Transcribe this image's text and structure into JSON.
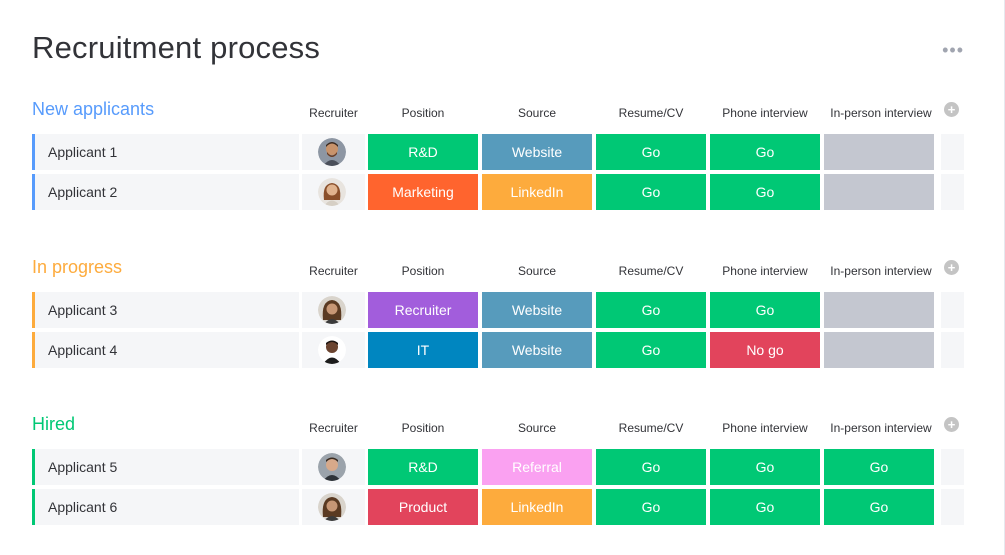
{
  "title": "Recruitment process",
  "more_icon": "more-dots-icon",
  "columns": [
    "Recruiter",
    "Position",
    "Source",
    "Resume/CV",
    "Phone interview",
    "In-person interview"
  ],
  "colors": {
    "blue_group": "#579bfc",
    "orange_group": "#fdab3d",
    "green_group": "#00c875",
    "go": "#00c875",
    "no_go": "#e2445c",
    "empty": "#c4c4c4",
    "rd": "#00c875",
    "marketing": "#ff642e",
    "recruiter": "#a25ddc",
    "it": "#0086c0",
    "product": "#e2445c",
    "website": "#579bbc",
    "linkedin": "#fdab3d",
    "referral": "#faa1f1"
  },
  "groups": [
    {
      "name": "New applicants",
      "color": "#579bfc",
      "rows": [
        {
          "name": "Applicant 1",
          "position": "R&D",
          "source": "Website",
          "resume": "Go",
          "phone": "Go",
          "inperson": ""
        },
        {
          "name": "Applicant 2",
          "position": "Marketing",
          "source": "LinkedIn",
          "resume": "Go",
          "phone": "Go",
          "inperson": ""
        }
      ]
    },
    {
      "name": "In progress",
      "color": "#fdab3d",
      "rows": [
        {
          "name": "Applicant 3",
          "position": "Recruiter",
          "source": "Website",
          "resume": "Go",
          "phone": "Go",
          "inperson": ""
        },
        {
          "name": "Applicant 4",
          "position": "IT",
          "source": "Website",
          "resume": "Go",
          "phone": "No go",
          "inperson": ""
        }
      ]
    },
    {
      "name": "Hired",
      "color": "#00c875",
      "rows": [
        {
          "name": "Applicant 5",
          "position": "R&D",
          "source": "Referral",
          "resume": "Go",
          "phone": "Go",
          "inperson": "Go"
        },
        {
          "name": "Applicant 6",
          "position": "Product",
          "source": "LinkedIn",
          "resume": "Go",
          "phone": "Go",
          "inperson": "Go"
        }
      ]
    }
  ]
}
